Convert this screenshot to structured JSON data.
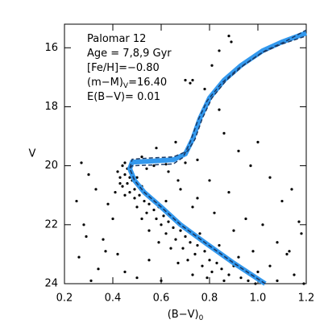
{
  "chart_data": {
    "type": "scatter",
    "annotations": [
      {
        "text": "Palomar 12"
      },
      {
        "text": "Age = 7,8,9 Gyr"
      },
      {
        "text": "[Fe/H]=−0.80"
      },
      {
        "text": "(m−M)",
        "subscript": "V",
        "after": "=16.40"
      },
      {
        "text": "E(B−V)= 0.01"
      }
    ],
    "xlabel": {
      "text": "(B−V)",
      "subscript": "0"
    },
    "ylabel": "V",
    "xlim": [
      0.2,
      1.2
    ],
    "xticks": [
      0.2,
      0.4,
      0.6,
      0.8,
      {
        "value": 1,
        "label": "1.0"
      },
      1.2
    ],
    "ylim": [
      15.2,
      24
    ],
    "y_inverted": true,
    "yticks": [
      16,
      18,
      20,
      22,
      24
    ],
    "point_color": "#000000",
    "points": [
      [
        0.44,
        20.0
      ],
      [
        0.46,
        20.1
      ],
      [
        0.45,
        20.3
      ],
      [
        0.47,
        20.2
      ],
      [
        0.43,
        20.4
      ],
      [
        0.48,
        20.5
      ],
      [
        0.46,
        20.6
      ],
      [
        0.5,
        20.4
      ],
      [
        0.44,
        20.7
      ],
      [
        0.49,
        20.8
      ],
      [
        0.47,
        20.9
      ],
      [
        0.52,
        20.7
      ],
      [
        0.45,
        21.0
      ],
      [
        0.51,
        21.0
      ],
      [
        0.53,
        21.2
      ],
      [
        0.49,
        21.1
      ],
      [
        0.55,
        21.3
      ],
      [
        0.5,
        21.4
      ],
      [
        0.57,
        21.5
      ],
      [
        0.54,
        21.6
      ],
      [
        0.59,
        21.4
      ],
      [
        0.47,
        20.4
      ],
      [
        0.42,
        20.2
      ],
      [
        0.45,
        19.9
      ],
      [
        0.48,
        20.0
      ],
      [
        0.43,
        20.6
      ],
      [
        0.56,
        21.1
      ],
      [
        0.61,
        21.7
      ],
      [
        0.58,
        21.8
      ],
      [
        0.63,
        21.9
      ],
      [
        0.6,
        22.0
      ],
      [
        0.65,
        22.1
      ],
      [
        0.62,
        22.3
      ],
      [
        0.68,
        22.2
      ],
      [
        0.66,
        22.5
      ],
      [
        0.7,
        22.4
      ],
      [
        0.72,
        22.6
      ],
      [
        0.69,
        22.8
      ],
      [
        0.75,
        22.7
      ],
      [
        0.74,
        23.0
      ],
      [
        0.78,
        22.9
      ],
      [
        0.8,
        23.2
      ],
      [
        0.77,
        23.4
      ],
      [
        0.83,
        23.3
      ],
      [
        0.85,
        23.5
      ],
      [
        0.81,
        23.6
      ],
      [
        0.88,
        23.7
      ],
      [
        0.9,
        23.4
      ],
      [
        0.86,
        23.9
      ],
      [
        0.93,
        23.8
      ],
      [
        0.96,
        23.9
      ],
      [
        0.71,
        23.2
      ],
      [
        0.64,
        22.8
      ],
      [
        0.67,
        23.3
      ],
      [
        0.59,
        22.6
      ],
      [
        0.55,
        22.2
      ],
      [
        0.52,
        21.8
      ],
      [
        0.73,
        23.7
      ],
      [
        0.79,
        23.8
      ],
      [
        0.92,
        23.1
      ],
      [
        1.0,
        23.6
      ],
      [
        1.05,
        23.4
      ],
      [
        0.98,
        22.9
      ],
      [
        0.84,
        22.7
      ],
      [
        0.76,
        22.3
      ],
      [
        0.62,
        21.2
      ],
      [
        0.41,
        20.9
      ],
      [
        0.38,
        21.3
      ],
      [
        0.4,
        21.8
      ],
      [
        0.36,
        22.5
      ],
      [
        0.27,
        19.9
      ],
      [
        0.3,
        20.3
      ],
      [
        0.25,
        21.2
      ],
      [
        0.33,
        20.8
      ],
      [
        0.29,
        22.4
      ],
      [
        0.26,
        23.1
      ],
      [
        0.34,
        23.5
      ],
      [
        0.31,
        23.9
      ],
      [
        0.37,
        22.9
      ],
      [
        0.28,
        22.0
      ],
      [
        0.45,
        23.6
      ],
      [
        0.5,
        23.8
      ],
      [
        0.55,
        23.2
      ],
      [
        0.42,
        23.0
      ],
      [
        0.6,
        23.9
      ],
      [
        0.63,
        20.2
      ],
      [
        0.68,
        20.8
      ],
      [
        0.75,
        21.1
      ],
      [
        0.82,
        21.6
      ],
      [
        0.88,
        20.9
      ],
      [
        0.95,
        21.8
      ],
      [
        1.02,
        22.0
      ],
      [
        1.08,
        22.6
      ],
      [
        1.12,
        23.0
      ],
      [
        1.15,
        23.7
      ],
      [
        1.18,
        22.3
      ],
      [
        1.1,
        21.2
      ],
      [
        1.05,
        20.4
      ],
      [
        0.97,
        20.0
      ],
      [
        0.92,
        19.5
      ],
      [
        0.86,
        18.9
      ],
      [
        0.84,
        18.1
      ],
      [
        1.0,
        19.2
      ],
      [
        1.14,
        20.8
      ],
      [
        1.17,
        21.9
      ],
      [
        1.08,
        23.9
      ],
      [
        0.58,
        19.4
      ],
      [
        0.52,
        19.7
      ],
      [
        0.7,
        17.1
      ],
      [
        0.73,
        17.1
      ],
      [
        0.72,
        17.2
      ],
      [
        0.78,
        17.4
      ],
      [
        0.81,
        16.6
      ],
      [
        0.84,
        16.1
      ],
      [
        0.88,
        15.6
      ],
      [
        0.89,
        15.8
      ],
      [
        0.95,
        16.5
      ],
      [
        0.66,
        19.2
      ],
      [
        0.75,
        19.8
      ],
      [
        0.8,
        20.5
      ],
      [
        0.73,
        21.4
      ],
      [
        0.9,
        22.2
      ],
      [
        0.99,
        24.0
      ],
      [
        1.19,
        24.0
      ],
      [
        1.13,
        22.9
      ],
      [
        0.57,
        20.0
      ],
      [
        0.62,
        19.95
      ],
      [
        0.7,
        19.9
      ],
      [
        0.67,
        20.5
      ],
      [
        0.54,
        20.1
      ]
    ],
    "isochrones": [
      {
        "color": "#3399ee",
        "width": 6,
        "dashed": false,
        "x": [
          1.03,
          0.9,
          0.78,
          0.68,
          0.6,
          0.53,
          0.49,
          0.47,
          0.48,
          0.55,
          0.65,
          0.7,
          0.73,
          0.76,
          0.8,
          0.86,
          0.93,
          1.02,
          1.1,
          1.2
        ],
        "y": [
          24,
          23.3,
          22.6,
          22,
          21.4,
          20.9,
          20.5,
          20.1,
          19.88,
          19.85,
          19.8,
          19.6,
          19.1,
          18.4,
          17.7,
          17.1,
          16.6,
          16.1,
          15.8,
          15.5
        ]
      },
      {
        "color": "#1a3a66",
        "width": 1.5,
        "dashed": true,
        "x": [
          1.03,
          0.9,
          0.78,
          0.68,
          0.6,
          0.53,
          0.49,
          0.47,
          0.48,
          0.55,
          0.65,
          0.71,
          0.74,
          0.77,
          0.81,
          0.87,
          0.94,
          1.03,
          1.11,
          1.2
        ],
        "y": [
          24,
          23.3,
          22.6,
          22,
          21.4,
          20.9,
          20.5,
          20.1,
          19.78,
          19.74,
          19.7,
          19.5,
          19.1,
          18.4,
          17.7,
          17.1,
          16.6,
          16.1,
          15.8,
          15.4
        ]
      },
      {
        "color": "#1a3a66",
        "width": 1.5,
        "dashed": true,
        "x": [
          1.03,
          0.9,
          0.78,
          0.68,
          0.6,
          0.53,
          0.49,
          0.47,
          0.48,
          0.55,
          0.65,
          0.69,
          0.72,
          0.75,
          0.79,
          0.85,
          0.92,
          1.01,
          1.09,
          1.2
        ],
        "y": [
          24,
          23.3,
          22.6,
          22,
          21.4,
          20.9,
          20.5,
          20.1,
          20.0,
          19.98,
          19.94,
          19.72,
          19.2,
          18.5,
          17.8,
          17.2,
          16.7,
          16.2,
          15.9,
          15.6
        ]
      }
    ]
  }
}
